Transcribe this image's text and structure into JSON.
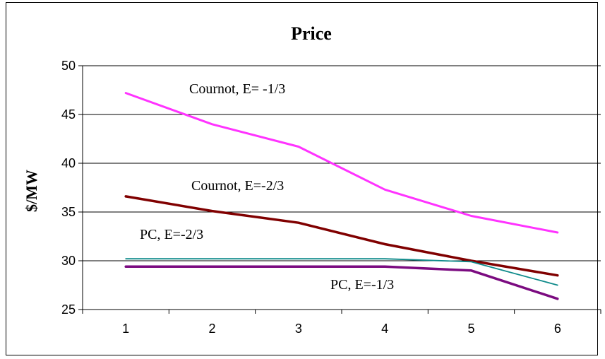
{
  "chart_data": {
    "type": "line",
    "title": "Price",
    "xlabel": "",
    "ylabel": "$/MW",
    "categories": [
      "1",
      "2",
      "3",
      "4",
      "5",
      "6"
    ],
    "ylim": [
      25,
      50
    ],
    "yticks": [
      25,
      30,
      35,
      40,
      45,
      50
    ],
    "grid": "horizontal",
    "legend": "none",
    "series": [
      {
        "name": "Cournot, E= -1/3",
        "color": "#ff33ff",
        "width": 3,
        "values": [
          47.2,
          44.0,
          41.7,
          37.3,
          34.6,
          32.9
        ]
      },
      {
        "name": "Cournot, E=-2/3",
        "color": "#800000",
        "width": 3.5,
        "values": [
          36.6,
          35.1,
          33.9,
          31.7,
          30.0,
          28.5
        ]
      },
      {
        "name": "PC, E=-2/3",
        "color": "#0e8a8a",
        "width": 1.8,
        "values": [
          30.2,
          30.2,
          30.2,
          30.2,
          29.9,
          27.5
        ]
      },
      {
        "name": "PC, E=-1/3",
        "color": "#7b0b80",
        "width": 3.5,
        "values": [
          29.4,
          29.4,
          29.4,
          29.4,
          29.0,
          26.1
        ]
      }
    ]
  }
}
